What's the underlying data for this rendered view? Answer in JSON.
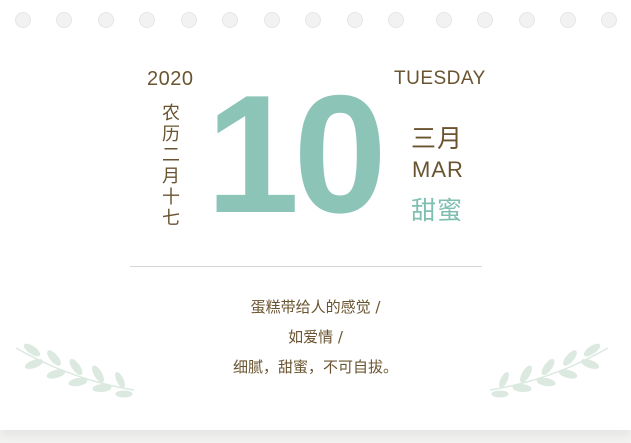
{
  "calendar": {
    "year": "2020",
    "weekday": "TUESDAY",
    "lunar_date": "农历二月十七",
    "day": "10",
    "month_cn": "三月",
    "month_en": "MAR",
    "keyword": "甜蜜"
  },
  "quote": {
    "lines": [
      "蛋糕带给人的感觉 /",
      "如爱情 /",
      "细腻，甜蜜，不可自拔。"
    ]
  },
  "decor": {
    "ring_hole_count": 15,
    "leaf_icon": "leaf-branch-icon",
    "colors": {
      "text_brown": "#6a5430",
      "accent_teal": "#8cc4b8",
      "leaf_green": "#dbe9e0"
    }
  }
}
